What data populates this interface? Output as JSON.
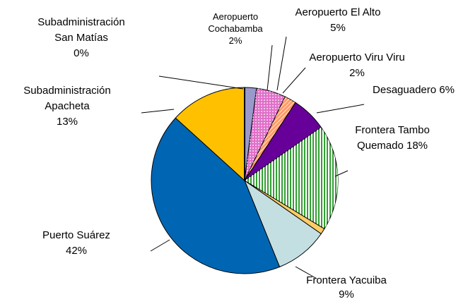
{
  "chart_data": {
    "type": "pie",
    "categories": [
      [
        "Aeropuerto",
        "Cochabamba"
      ],
      [
        "Aeropuerto El Alto"
      ],
      [
        "Aeropuerto Viru Viru"
      ],
      [
        "Desaguadero"
      ],
      [
        "Frontera Tambo",
        "Quemado"
      ],
      null,
      [
        "Frontera Yacuiba"
      ],
      [
        "Puerto Suárez"
      ],
      [
        "Subadministración",
        "Apacheta"
      ],
      [
        "Subadministración",
        "San Matías"
      ]
    ],
    "values": [
      2,
      5,
      2,
      6,
      18,
      1,
      9,
      42,
      13,
      0
    ],
    "value_labels": [
      "2%",
      "5%",
      "2%",
      "6%",
      "18%",
      null,
      "9%",
      "42%",
      "13%",
      "0%"
    ],
    "colors": [
      "#9999cc",
      "#e070c8",
      "#ff9966",
      "#660099",
      "#33a033",
      "#ffcc66",
      "#c4dfe2",
      "#0066b3",
      "#ffc000",
      "#000000"
    ]
  }
}
